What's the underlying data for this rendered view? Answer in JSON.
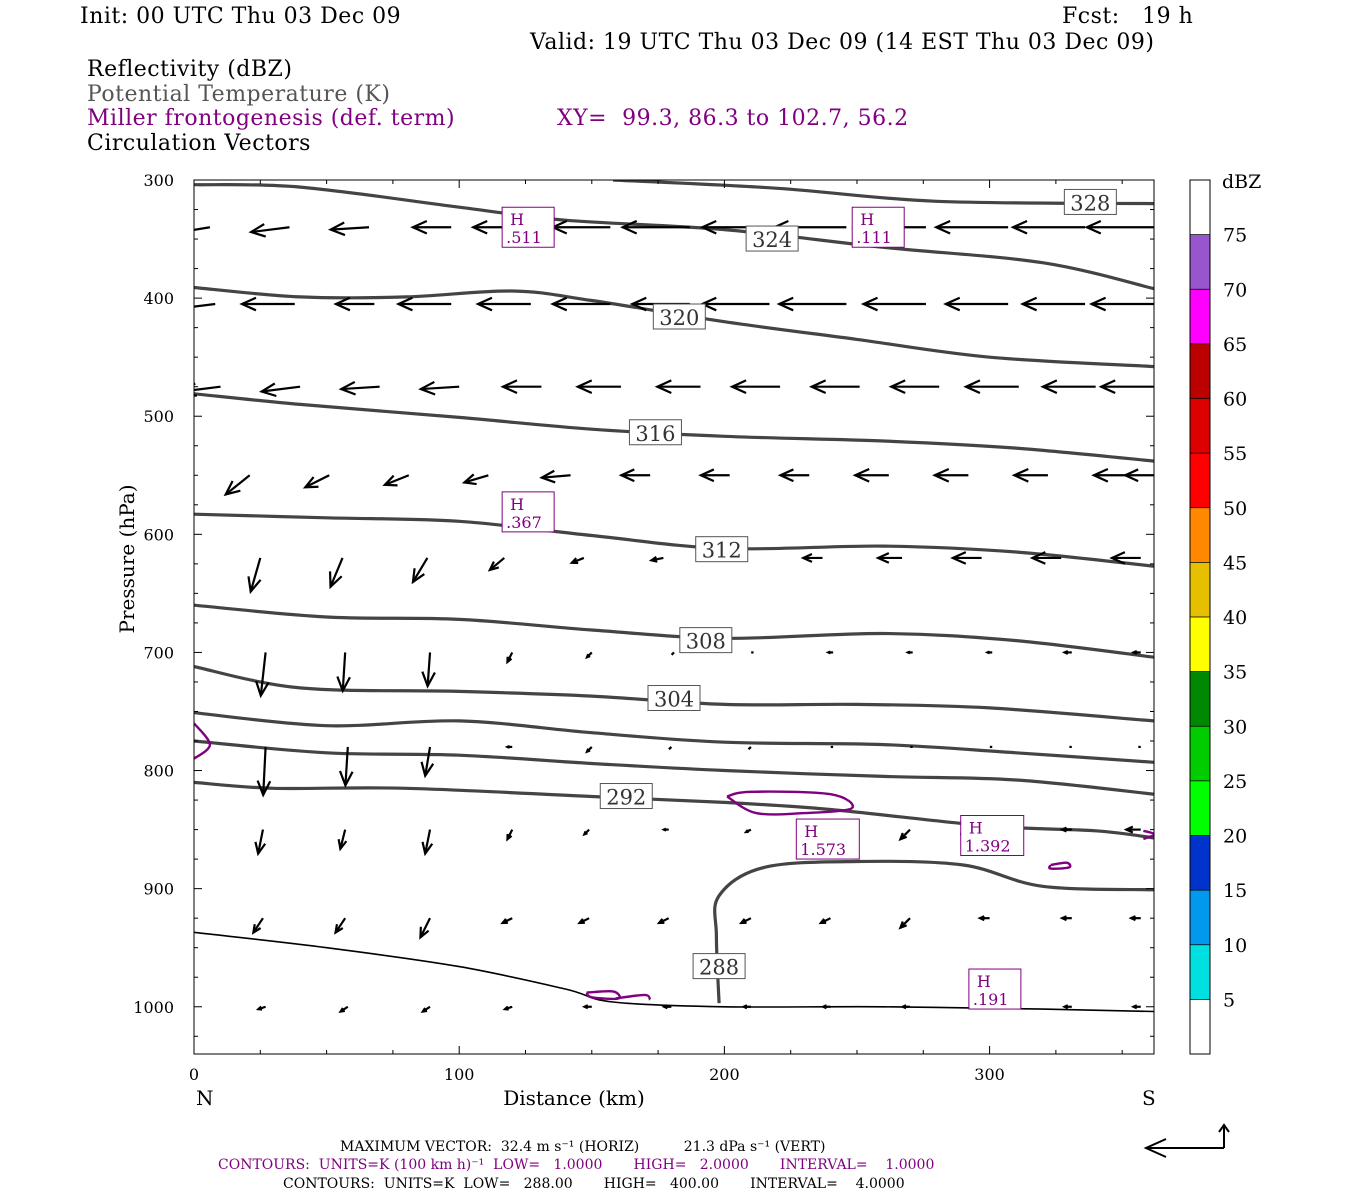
{
  "header": {
    "init": "Init: 00 UTC Thu 03 Dec 09",
    "fcst": "Fcst:   19 h",
    "valid": "Valid: 19 UTC Thu 03 Dec 09 (14 EST Thu 03 Dec 09)",
    "field1": "Reflectivity (dBZ)",
    "field2": "Potential Temperature (K)",
    "field3": "Miller frontogenesis (def. term)",
    "xy": "XY=  99.3, 86.3 to 102.7, 56.2",
    "field4": "Circulation Vectors"
  },
  "footer": {
    "max_vector": "MAXIMUM VECTOR:  32.4 m s⁻¹ (HORIZ)          21.3 dPa s⁻¹ (VERT)",
    "contours1": "CONTOURS:  UNITS=K (100 km h)⁻¹  LOW=   1.0000       HIGH=   2.0000       INTERVAL=    1.0000",
    "contours2": "CONTOURS:  UNITS=K  LOW=   288.00       HIGH=   400.00       INTERVAL=    4.0000"
  },
  "colors": {
    "theta": "#444444",
    "fronto": "#800080",
    "vector": "#000000"
  },
  "chart_data": {
    "type": "cross-section",
    "xlabel": "Distance (km)",
    "ylabel": "Pressure (hPa)",
    "xlim": [
      0,
      362
    ],
    "ylim": [
      1040,
      300
    ],
    "x_ticks": [
      0,
      100,
      200,
      300
    ],
    "y_ticks": [
      300,
      400,
      500,
      600,
      700,
      800,
      900,
      1000
    ],
    "x_end_labels": {
      "left": "N",
      "right": "S"
    },
    "colorbar": {
      "title": "dBZ",
      "levels": [
        5,
        10,
        15,
        20,
        25,
        30,
        35,
        40,
        45,
        50,
        55,
        60,
        65,
        70,
        75
      ],
      "colors": [
        "#ffffff",
        "#00e0e0",
        "#0099ee",
        "#0033cc",
        "#00ff00",
        "#00cc00",
        "#008800",
        "#ffff00",
        "#e6c000",
        "#ff8800",
        "#ff0000",
        "#dd0000",
        "#bb0000",
        "#ff00ff",
        "#9955cc",
        "#ffffff"
      ]
    },
    "theta_contours": [
      {
        "level": 328,
        "label_at": [
          338,
          319
        ],
        "points": [
          [
            158,
            300
          ],
          [
            220,
            307
          ],
          [
            280,
            318
          ],
          [
            362,
            320
          ]
        ]
      },
      {
        "level": 324,
        "label_at": [
          218,
          350
        ],
        "points": [
          [
            0,
            304
          ],
          [
            40,
            306
          ],
          [
            100,
            323
          ],
          [
            140,
            334
          ],
          [
            200,
            342
          ],
          [
            260,
            357
          ],
          [
            320,
            370
          ],
          [
            362,
            392
          ]
        ]
      },
      {
        "level": 320,
        "label_at": [
          183,
          416
        ],
        "points": [
          [
            0,
            391
          ],
          [
            40,
            399
          ],
          [
            80,
            399
          ],
          [
            120,
            394
          ],
          [
            150,
            402
          ],
          [
            200,
            420
          ],
          [
            250,
            435
          ],
          [
            300,
            450
          ],
          [
            362,
            458
          ]
        ]
      },
      {
        "level": 316,
        "label_at": [
          174,
          514
        ],
        "points": [
          [
            0,
            481
          ],
          [
            40,
            490
          ],
          [
            100,
            501
          ],
          [
            150,
            511
          ],
          [
            200,
            517
          ],
          [
            260,
            521
          ],
          [
            310,
            527
          ],
          [
            362,
            538
          ]
        ]
      },
      {
        "level": 312,
        "label_at": [
          199,
          613
        ],
        "points": [
          [
            0,
            583
          ],
          [
            50,
            586
          ],
          [
            100,
            589
          ],
          [
            150,
            601
          ],
          [
            200,
            612
          ],
          [
            260,
            610
          ],
          [
            310,
            615
          ],
          [
            362,
            627
          ]
        ]
      },
      {
        "level": 308,
        "label_at": [
          193,
          690
        ],
        "points": [
          [
            0,
            660
          ],
          [
            50,
            670
          ],
          [
            100,
            672
          ],
          [
            150,
            681
          ],
          [
            200,
            688
          ],
          [
            260,
            684
          ],
          [
            310,
            690
          ],
          [
            362,
            704
          ]
        ]
      },
      {
        "level": 304,
        "label_at": [
          181,
          739
        ],
        "points": [
          [
            0,
            712
          ],
          [
            40,
            730
          ],
          [
            100,
            733
          ],
          [
            150,
            737
          ],
          [
            200,
            744
          ],
          [
            250,
            744
          ],
          [
            300,
            747
          ],
          [
            362,
            758
          ]
        ]
      },
      {
        "level": 300,
        "label_at": null,
        "points": [
          [
            0,
            751
          ],
          [
            50,
            762
          ],
          [
            100,
            758
          ],
          [
            150,
            768
          ],
          [
            200,
            776
          ],
          [
            260,
            778
          ],
          [
            310,
            785
          ],
          [
            362,
            793
          ]
        ]
      },
      {
        "level": 296,
        "label_at": null,
        "points": [
          [
            0,
            775
          ],
          [
            50,
            785
          ],
          [
            100,
            787
          ],
          [
            150,
            794
          ],
          [
            200,
            800
          ],
          [
            260,
            805
          ],
          [
            310,
            808
          ],
          [
            362,
            820
          ]
        ]
      },
      {
        "level": 292,
        "label_at": [
          163,
          822
        ],
        "points": [
          [
            0,
            810
          ],
          [
            30,
            815
          ],
          [
            80,
            815
          ],
          [
            150,
            822
          ],
          [
            200,
            827
          ],
          [
            240,
            833
          ],
          [
            300,
            847
          ],
          [
            340,
            851
          ],
          [
            362,
            857
          ]
        ]
      },
      {
        "level": 288,
        "label_at": [
          198,
          966
        ],
        "points": [
          [
            198,
            997
          ],
          [
            197,
            940
          ],
          [
            198,
            906
          ],
          [
            215,
            882
          ],
          [
            250,
            877
          ],
          [
            290,
            880
          ],
          [
            320,
            898
          ],
          [
            362,
            901
          ]
        ]
      }
    ],
    "terrain": [
      [
        0,
        937
      ],
      [
        50,
        950
      ],
      [
        100,
        966
      ],
      [
        140,
        985
      ],
      [
        158,
        996
      ],
      [
        200,
        1000
      ],
      [
        260,
        1000
      ],
      [
        320,
        1002
      ],
      [
        362,
        1004
      ]
    ],
    "fronto_maxima": [
      {
        "label": "H",
        "value": ".511",
        "at": [
          126,
          340
        ]
      },
      {
        "label": "H",
        "value": ".111",
        "at": [
          258,
          340
        ]
      },
      {
        "label": "H",
        "value": ".367",
        "at": [
          126,
          581
        ]
      },
      {
        "label": "H",
        "value": "1.573",
        "at": [
          239,
          858
        ]
      },
      {
        "label": "H",
        "value": "1.392",
        "at": [
          301,
          855
        ]
      },
      {
        "label": "H",
        "value": ".191",
        "at": [
          302,
          985
        ]
      }
    ],
    "fronto_contours": [
      {
        "level": 1,
        "points": [
          [
            201,
            822
          ],
          [
            210,
            818
          ],
          [
            240,
            820
          ],
          [
            248,
            832
          ],
          [
            230,
            836
          ],
          [
            212,
            836
          ],
          [
            201,
            822
          ]
        ]
      },
      {
        "level": 1,
        "points": [
          [
            0,
            760
          ],
          [
            6,
            778
          ],
          [
            0,
            790
          ]
        ]
      },
      {
        "level": 1,
        "points": [
          [
            148,
            988
          ],
          [
            158,
            987
          ],
          [
            160,
            993
          ],
          [
            150,
            992
          ],
          [
            148,
            988
          ]
        ]
      },
      {
        "level": 1,
        "points": [
          [
            159,
            993
          ],
          [
            170,
            990
          ],
          [
            172,
            994
          ]
        ]
      },
      {
        "level": 1,
        "points": [
          [
            323,
            880
          ],
          [
            329,
            878
          ],
          [
            330,
            882
          ],
          [
            323,
            883
          ],
          [
            323,
            880
          ]
        ]
      },
      {
        "level": 1,
        "points": [
          [
            289,
            854
          ],
          [
            294,
            848
          ],
          [
            296,
            860
          ],
          [
            289,
            854
          ]
        ]
      },
      {
        "level": 1,
        "points": [
          [
            358,
            851
          ],
          [
            362,
            854
          ],
          [
            358,
            858
          ]
        ]
      }
    ],
    "vectors": {
      "max_vector": "32.4 m s⁻¹",
      "rows": [
        {
          "p": 340,
          "x": [
            6,
            36,
            66,
            97,
            127,
            157,
            187,
            217,
            246,
            276,
            307,
            336,
            362
          ],
          "u": [
            -24,
            -16,
            -16,
            -16,
            -24,
            -24,
            -28,
            -28,
            -30,
            -30,
            -30,
            -30,
            -28
          ],
          "w": [
            -4,
            -2,
            -1,
            0,
            0,
            0,
            0,
            0,
            0,
            0,
            0,
            0,
            0
          ]
        },
        {
          "p": 405,
          "x": [
            8,
            38,
            68,
            97,
            127,
            157,
            187,
            217,
            246,
            276,
            307,
            336,
            362
          ],
          "u": [
            -16,
            -22,
            -16,
            -22,
            -22,
            -24,
            -24,
            -28,
            -28,
            -26,
            -26,
            -26,
            -26
          ],
          "w": [
            -2,
            0,
            0,
            0,
            0,
            0,
            0,
            0,
            0,
            0,
            0,
            0,
            0
          ]
        },
        {
          "p": 475,
          "x": [
            10,
            40,
            70,
            100,
            131,
            161,
            191,
            221,
            251,
            281,
            311,
            340,
            362
          ],
          "u": [
            -16,
            -16,
            -16,
            -16,
            -16,
            -18,
            -18,
            -20,
            -20,
            -20,
            -22,
            -22,
            -22
          ],
          "w": [
            -2,
            -2,
            -1,
            -1,
            0,
            0,
            0,
            0,
            0,
            0,
            0,
            0,
            0
          ]
        },
        {
          "p": 550,
          "x": [
            21,
            51,
            81,
            111,
            142,
            172,
            202,
            232,
            262,
            292,
            322,
            352,
            362
          ],
          "u": [
            -10,
            -10,
            -10,
            -10,
            -12,
            -12,
            -12,
            -12,
            -14,
            -14,
            -14,
            -14,
            -12
          ],
          "w": [
            -8,
            -5,
            -4,
            -3,
            -1,
            0,
            0,
            0,
            0,
            0,
            0,
            0,
            0
          ]
        },
        {
          "p": 620,
          "x": [
            25,
            56,
            88,
            117,
            147,
            177,
            207,
            237,
            267,
            297,
            327,
            357
          ],
          "u": [
            -4,
            -5,
            -6,
            -6,
            -5,
            -5,
            -6,
            -8,
            -10,
            -12,
            -12,
            -12
          ],
          "w": [
            -14,
            -12,
            -10,
            -5,
            -2,
            -1,
            0,
            0,
            0,
            0,
            0,
            0
          ]
        },
        {
          "p": 700,
          "x": [
            27,
            57,
            89,
            120,
            150,
            181,
            211,
            241,
            271,
            301,
            331,
            357
          ],
          "u": [
            -2,
            -1,
            -1,
            -2,
            -2,
            -1,
            -1,
            -2,
            -2,
            -2,
            -3,
            -3
          ],
          "w": [
            -18,
            -16,
            -14,
            -4,
            -2,
            -1,
            0,
            0,
            0,
            0,
            0,
            0
          ]
        },
        {
          "p": 780,
          "x": [
            27,
            58,
            89,
            120,
            150,
            180,
            210,
            241,
            271,
            301,
            331,
            357
          ],
          "u": [
            -1,
            -1,
            -2,
            -2,
            -2,
            -1,
            -1,
            -1,
            -1,
            -1,
            -1,
            -1
          ],
          "w": [
            -20,
            -16,
            -12,
            0,
            -2,
            -1,
            -1,
            0,
            0,
            0,
            0,
            0
          ]
        },
        {
          "p": 850,
          "x": [
            26,
            57,
            89,
            120,
            149,
            179,
            210,
            240,
            270,
            300,
            331,
            357
          ],
          "u": [
            -2,
            -2,
            -2,
            -2,
            -2,
            -2,
            -2,
            -2,
            -4,
            -4,
            -4,
            -6
          ],
          "w": [
            -10,
            -8,
            -10,
            -4,
            -2,
            0,
            -1,
            -2,
            -4,
            -1,
            0,
            0
          ]
        },
        {
          "p": 925,
          "x": [
            26,
            57,
            89,
            120,
            149,
            179,
            210,
            240,
            270,
            300,
            331,
            357
          ],
          "u": [
            -4,
            -4,
            -4,
            -4,
            -4,
            -4,
            -4,
            -4,
            -4,
            -4,
            -4,
            -4
          ],
          "w": [
            -6,
            -6,
            -8,
            -2,
            -2,
            -2,
            -2,
            -2,
            -4,
            0,
            0,
            0
          ]
        },
        {
          "p": 1000,
          "x": [
            27,
            58,
            89,
            120,
            150,
            180,
            210,
            240,
            270,
            300,
            331,
            357
          ],
          "u": [
            -3,
            -3,
            -3,
            -3,
            -3,
            -3,
            -3,
            -3,
            -3,
            -3,
            -3,
            -3
          ],
          "w": [
            -1,
            -2,
            -2,
            -1,
            0,
            0,
            0,
            0,
            0,
            0,
            0,
            0
          ]
        }
      ]
    }
  }
}
